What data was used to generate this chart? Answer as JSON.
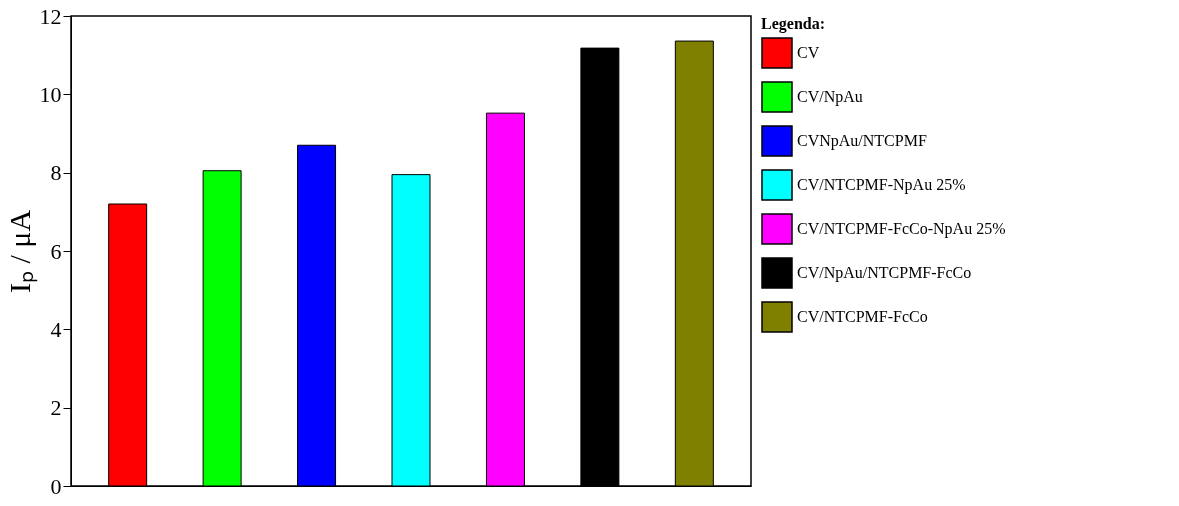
{
  "chart_data": {
    "type": "bar",
    "ylabel": "Iₚ / μA",
    "legend_title": "Legenda:",
    "legend": "right",
    "grid": false,
    "tick_labels": "y",
    "categories": [
      null,
      null,
      null,
      null,
      null,
      null,
      null
    ],
    "ylim": [
      0,
      12
    ],
    "yticks": [
      0,
      2,
      4,
      6,
      8,
      10,
      12
    ],
    "series": [
      {
        "name": "CV",
        "color": "#ff0000",
        "values": [
          7.2,
          null,
          null,
          null,
          null,
          null,
          null
        ]
      },
      {
        "name": "CV/NpAu",
        "color": "#00ff00",
        "values": [
          null,
          8.05,
          null,
          null,
          null,
          null,
          null
        ]
      },
      {
        "name": "CVNpAu/NTCPMF",
        "color": "#0000ff",
        "values": [
          null,
          null,
          8.7,
          null,
          null,
          null,
          null
        ]
      },
      {
        "name": "CV/NTCPMF-NpAu 25%",
        "color": "#00ffff",
        "values": [
          null,
          null,
          null,
          7.95,
          null,
          null,
          null
        ]
      },
      {
        "name": "CV/NTCPMF-FcCo-NpAu 25%",
        "color": "#ff00ff",
        "values": [
          null,
          null,
          null,
          null,
          9.52,
          null,
          null
        ]
      },
      {
        "name": "CV/NpAu/NTCPMF-FcCo",
        "color": "#000000",
        "values": [
          null,
          null,
          null,
          null,
          null,
          11.18,
          null
        ]
      },
      {
        "name": "CV/NTCPMF-FcCo",
        "color": "#808000",
        "values": [
          null,
          null,
          null,
          null,
          null,
          null,
          11.36
        ]
      }
    ]
  }
}
